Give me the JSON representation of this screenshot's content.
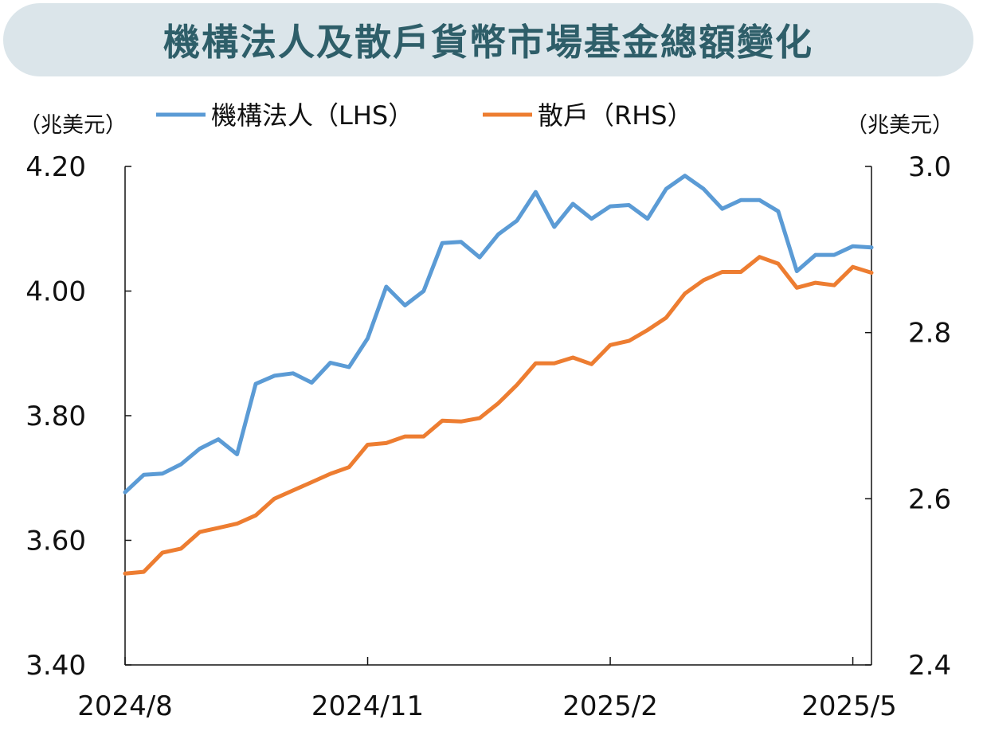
{
  "chart_data": {
    "type": "line",
    "title": "機構法人及散戶貨幣市場基金總額變化",
    "left_unit": "（兆美元）",
    "right_unit": "（兆美元）",
    "left_ylim": [
      3.4,
      4.2
    ],
    "right_ylim": [
      2.4,
      3.0
    ],
    "left_ticks": [
      "4.20",
      "4.00",
      "3.80",
      "3.60",
      "3.40"
    ],
    "right_ticks": [
      "3.0",
      "2.8",
      "2.6",
      "2.4"
    ],
    "x_tick_labels": [
      "2024/8",
      "2024/11",
      "2025/2",
      "2025/5"
    ],
    "x_tick_index": [
      0,
      13,
      26,
      39
    ],
    "grid": false,
    "legend_position": "top",
    "series": [
      {
        "name": "機構法人（LHS）",
        "axis": "left",
        "color": "#5b9bd5",
        "values": [
          3.677,
          3.705,
          3.707,
          3.722,
          3.747,
          3.762,
          3.738,
          3.851,
          3.864,
          3.868,
          3.853,
          3.885,
          3.878,
          3.924,
          4.007,
          3.977,
          4.0,
          4.077,
          4.079,
          4.054,
          4.091,
          4.113,
          4.159,
          4.103,
          4.14,
          4.116,
          4.136,
          4.138,
          4.116,
          4.164,
          4.185,
          4.164,
          4.132,
          4.146,
          4.146,
          4.128,
          4.032,
          4.058,
          4.058,
          4.072,
          4.07
        ]
      },
      {
        "name": "散戶（RHS）",
        "axis": "right",
        "color": "#ed7d31",
        "values": [
          2.51,
          2.512,
          2.535,
          2.54,
          2.56,
          2.565,
          2.57,
          2.58,
          2.6,
          2.61,
          2.62,
          2.63,
          2.638,
          2.665,
          2.667,
          2.675,
          2.675,
          2.694,
          2.693,
          2.697,
          2.715,
          2.737,
          2.763,
          2.763,
          2.77,
          2.762,
          2.785,
          2.79,
          2.803,
          2.818,
          2.847,
          2.863,
          2.873,
          2.873,
          2.891,
          2.883,
          2.854,
          2.86,
          2.857,
          2.879,
          2.872
        ]
      }
    ]
  }
}
